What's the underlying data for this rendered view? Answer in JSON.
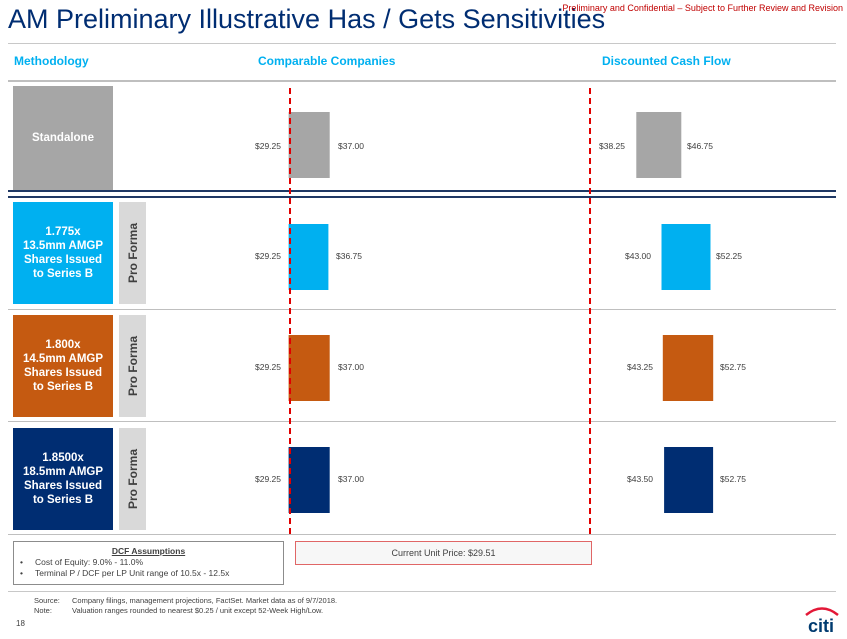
{
  "header": {
    "title": "AM Preliminary Illustrative Has / Gets Sensitivities",
    "confidential": "Preliminary and Confidential – Subject to Further Review and Revision"
  },
  "columns": {
    "methodology": "Methodology",
    "comparable": "Comparable Companies",
    "dcf": "Discounted Cash Flow"
  },
  "rows": [
    {
      "label": "Standalone",
      "pro_forma": "",
      "color": "#a6a6a6",
      "bar_color": "#a6a6a6",
      "comp": {
        "low": "$29.25",
        "high": "$37.00"
      },
      "dcf": {
        "low": "$38.25",
        "high": "$46.75"
      }
    },
    {
      "label": "1.775x\n13.5mm AMGP\nShares Issued\nto Series B",
      "pro_forma": "Pro Forma",
      "color": "#00b0f0",
      "bar_color": "#00b0f0",
      "comp": {
        "low": "$29.25",
        "high": "$36.75"
      },
      "dcf": {
        "low": "$43.00",
        "high": "$52.25"
      }
    },
    {
      "label": "1.800x\n14.5mm AMGP\nShares Issued\nto Series B",
      "pro_forma": "Pro Forma",
      "color": "#c55a11",
      "bar_color": "#c55a11",
      "comp": {
        "low": "$29.25",
        "high": "$37.00"
      },
      "dcf": {
        "low": "$43.25",
        "high": "$52.75"
      }
    },
    {
      "label": "1.8500x\n18.5mm AMGP\nShares Issued\nto Series B",
      "pro_forma": "Pro Forma",
      "color": "#002d72",
      "bar_color": "#002d72",
      "comp": {
        "low": "$29.25",
        "high": "$37.00"
      },
      "dcf": {
        "low": "$43.50",
        "high": "$52.75"
      }
    }
  ],
  "chart_data": [
    {
      "type": "bar",
      "title": "Comparable Companies",
      "categories": [
        "Standalone",
        "1.775x 13.5mm AMGP Shares Issued to Series B",
        "1.800x 14.5mm AMGP Shares Issued to Series B",
        "1.8500x 18.5mm AMGP Shares Issued to Series B"
      ],
      "low": [
        29.25,
        29.25,
        29.25,
        29.25
      ],
      "high": [
        37.0,
        36.75,
        37.0,
        37.0
      ],
      "reference_line": 29.51
    },
    {
      "type": "bar",
      "title": "Discounted Cash Flow",
      "categories": [
        "Standalone",
        "1.775x 13.5mm AMGP Shares Issued to Series B",
        "1.800x 14.5mm AMGP Shares Issued to Series B",
        "1.8500x 18.5mm AMGP Shares Issued to Series B"
      ],
      "low": [
        38.25,
        43.0,
        43.25,
        43.5
      ],
      "high": [
        46.75,
        52.25,
        52.75,
        52.75
      ],
      "reference_line": 29.51
    }
  ],
  "dcf_assumptions": {
    "title": "DCF Assumptions",
    "items": [
      "Cost of Equity: 9.0% - 11.0%",
      "Terminal P / DCF per LP Unit range of 10.5x - 12.5x"
    ]
  },
  "current_price": "Current Unit Price: $29.51",
  "footnotes": [
    {
      "label": "Source:",
      "text": "Company filings, management projections, FactSet. Market data as of 9/7/2018."
    },
    {
      "label": "Note:",
      "text": "Valuation ranges rounded to nearest $0.25 / unit except 52-Week High/Low."
    }
  ],
  "page_number": "18",
  "logo": "citi"
}
